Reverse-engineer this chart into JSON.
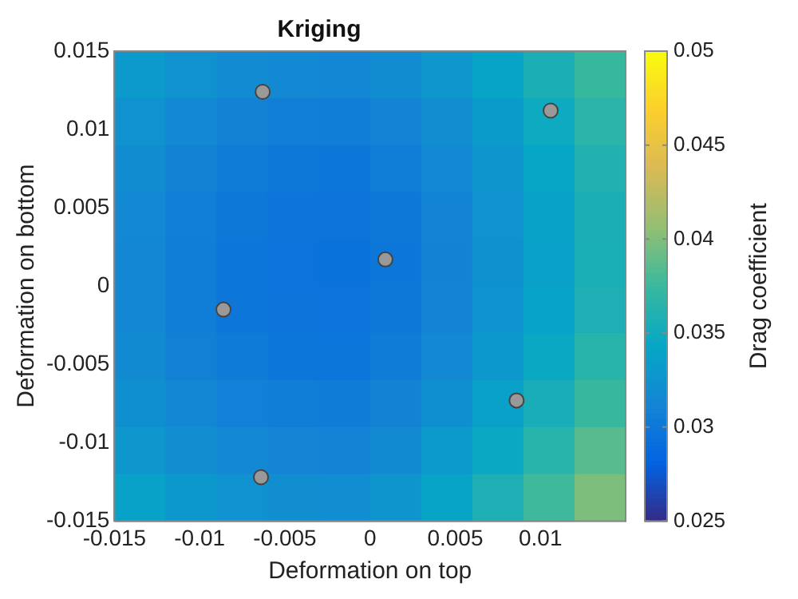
{
  "chart_data": {
    "type": "heatmap",
    "title": "Kriging",
    "xlabel": "Deformation on top",
    "ylabel": "Deformation on bottom",
    "clabel": "Drag coefficient",
    "xlim": [
      -0.015,
      0.015
    ],
    "xticks": [
      -0.015,
      -0.01,
      -0.005,
      0,
      0.005,
      0.01
    ],
    "ylim": [
      -0.015,
      0.015
    ],
    "yticks": [
      -0.015,
      -0.01,
      -0.005,
      0,
      0.005,
      0.01,
      0.015
    ],
    "clim": [
      0.025,
      0.05
    ],
    "cticks": [
      0.025,
      0.03,
      0.035,
      0.04,
      0.045,
      0.05
    ],
    "cells": [
      [
        0.0332,
        0.0324,
        0.0318,
        0.0315,
        0.0314,
        0.0319,
        0.0329,
        0.0341,
        0.0357,
        0.0374
      ],
      [
        0.0324,
        0.0316,
        0.031,
        0.0307,
        0.0306,
        0.0311,
        0.0321,
        0.0333,
        0.0349,
        0.0366
      ],
      [
        0.0319,
        0.031,
        0.0304,
        0.0301,
        0.03,
        0.0305,
        0.0315,
        0.0328,
        0.0343,
        0.0361
      ],
      [
        0.0315,
        0.0307,
        0.0301,
        0.0297,
        0.0297,
        0.0301,
        0.0311,
        0.0324,
        0.0339,
        0.0357
      ],
      [
        0.0314,
        0.0305,
        0.0299,
        0.0296,
        0.0295,
        0.03,
        0.031,
        0.0323,
        0.0338,
        0.0356
      ],
      [
        0.0314,
        0.0306,
        0.03,
        0.0297,
        0.0296,
        0.0301,
        0.0311,
        0.0325,
        0.034,
        0.0358
      ],
      [
        0.0317,
        0.0309,
        0.0303,
        0.03,
        0.0299,
        0.0304,
        0.0316,
        0.033,
        0.0346,
        0.0365
      ],
      [
        0.0322,
        0.0314,
        0.0308,
        0.0305,
        0.0304,
        0.031,
        0.0322,
        0.0337,
        0.0355,
        0.0374
      ],
      [
        0.0329,
        0.0321,
        0.0315,
        0.0312,
        0.0311,
        0.0317,
        0.0331,
        0.0346,
        0.0365,
        0.0386
      ],
      [
        0.0339,
        0.033,
        0.0324,
        0.0321,
        0.032,
        0.0327,
        0.0341,
        0.0358,
        0.0377,
        0.0399
      ]
    ],
    "marker": "circle",
    "series": [
      {
        "type": "scatter",
        "color": "#999999",
        "x": [
          -0.0063,
          0.0106,
          0.0009,
          -0.0086,
          0.0086,
          -0.0064
        ],
        "values": [
          0.0124,
          0.0112,
          0.0017,
          -0.0015,
          -0.0073,
          -0.0122
        ]
      }
    ]
  }
}
